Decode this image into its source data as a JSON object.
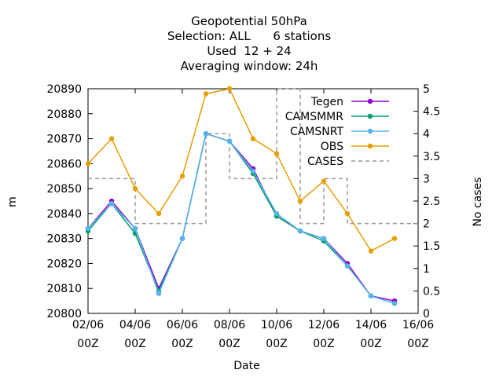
{
  "chart_data": {
    "type": "line",
    "title_lines": [
      "Geopotential 50hPa",
      "Selection: ALL      6 stations",
      "Used  12 + 24",
      "Averaging window: 24h"
    ],
    "xlabel": "Date",
    "ylabel": "m",
    "y2label": "No cases",
    "x_ticks": [
      {
        "value": "2023-06-02",
        "label_line1": "02/06",
        "label_line2": "00Z"
      },
      {
        "value": "2023-06-04",
        "label_line1": "04/06",
        "label_line2": "00Z"
      },
      {
        "value": "2023-06-06",
        "label_line1": "06/06",
        "label_line2": "00Z"
      },
      {
        "value": "2023-06-08",
        "label_line1": "08/06",
        "label_line2": "00Z"
      },
      {
        "value": "2023-06-10",
        "label_line1": "10/06",
        "label_line2": "00Z"
      },
      {
        "value": "2023-06-12",
        "label_line1": "12/06",
        "label_line2": "00Z"
      },
      {
        "value": "2023-06-14",
        "label_line1": "14/06",
        "label_line2": "00Z"
      },
      {
        "value": "2023-06-16",
        "label_line1": "16/06",
        "label_line2": "00Z"
      }
    ],
    "xlim": [
      "2023-06-02",
      "2023-06-16"
    ],
    "ylim": [
      20800,
      20890
    ],
    "y_ticks": [
      20800,
      20810,
      20820,
      20830,
      20840,
      20850,
      20860,
      20870,
      20880,
      20890
    ],
    "y2lim": [
      0,
      5
    ],
    "y2_ticks": [
      "0",
      "0.5",
      "1",
      "1.5",
      "2",
      "2.5",
      "3",
      "3.5",
      "4",
      "4.5",
      "5"
    ],
    "x": [
      "2023-06-02",
      "2023-06-03",
      "2023-06-04",
      "2023-06-05",
      "2023-06-06",
      "2023-06-07",
      "2023-06-08",
      "2023-06-09",
      "2023-06-10",
      "2023-06-11",
      "2023-06-12",
      "2023-06-13",
      "2023-06-14",
      "2023-06-15"
    ],
    "series": [
      {
        "name": "Tegen",
        "color": "#9400d3",
        "axis": "y1",
        "style": "line-points",
        "values": [
          20834,
          20845,
          20834,
          20810,
          20830,
          20872,
          20869,
          20858,
          20839,
          20833,
          20830,
          20820,
          20807,
          20805
        ]
      },
      {
        "name": "CAMSMMR",
        "color": "#009e73",
        "axis": "y1",
        "style": "line-points",
        "values": [
          20833,
          20844,
          20832,
          20809,
          20830,
          20872,
          20869,
          20856,
          20839,
          20833,
          20829,
          20819,
          20807,
          20804
        ]
      },
      {
        "name": "CAMSNRT",
        "color": "#56b4e9",
        "axis": "y1",
        "style": "line-points",
        "values": [
          20834,
          20844,
          20834,
          20808,
          20830,
          20872,
          20869,
          20857,
          20840,
          20833,
          20830,
          20819,
          20807,
          20804
        ]
      },
      {
        "name": "OBS",
        "color": "#e69f00",
        "axis": "y1",
        "style": "line-points",
        "values": [
          20860,
          20870,
          20850,
          20840,
          20855,
          20888,
          20890,
          20870,
          20864,
          20845,
          20853,
          20840,
          20825,
          20830
        ]
      },
      {
        "name": "CASES",
        "color": "#999999",
        "axis": "y2",
        "style": "dashed-step",
        "values": [
          3,
          3,
          2,
          2,
          2,
          4,
          3,
          3,
          5,
          2,
          3,
          2,
          2,
          2
        ]
      }
    ],
    "legend_position": "top-right",
    "grid": false
  }
}
